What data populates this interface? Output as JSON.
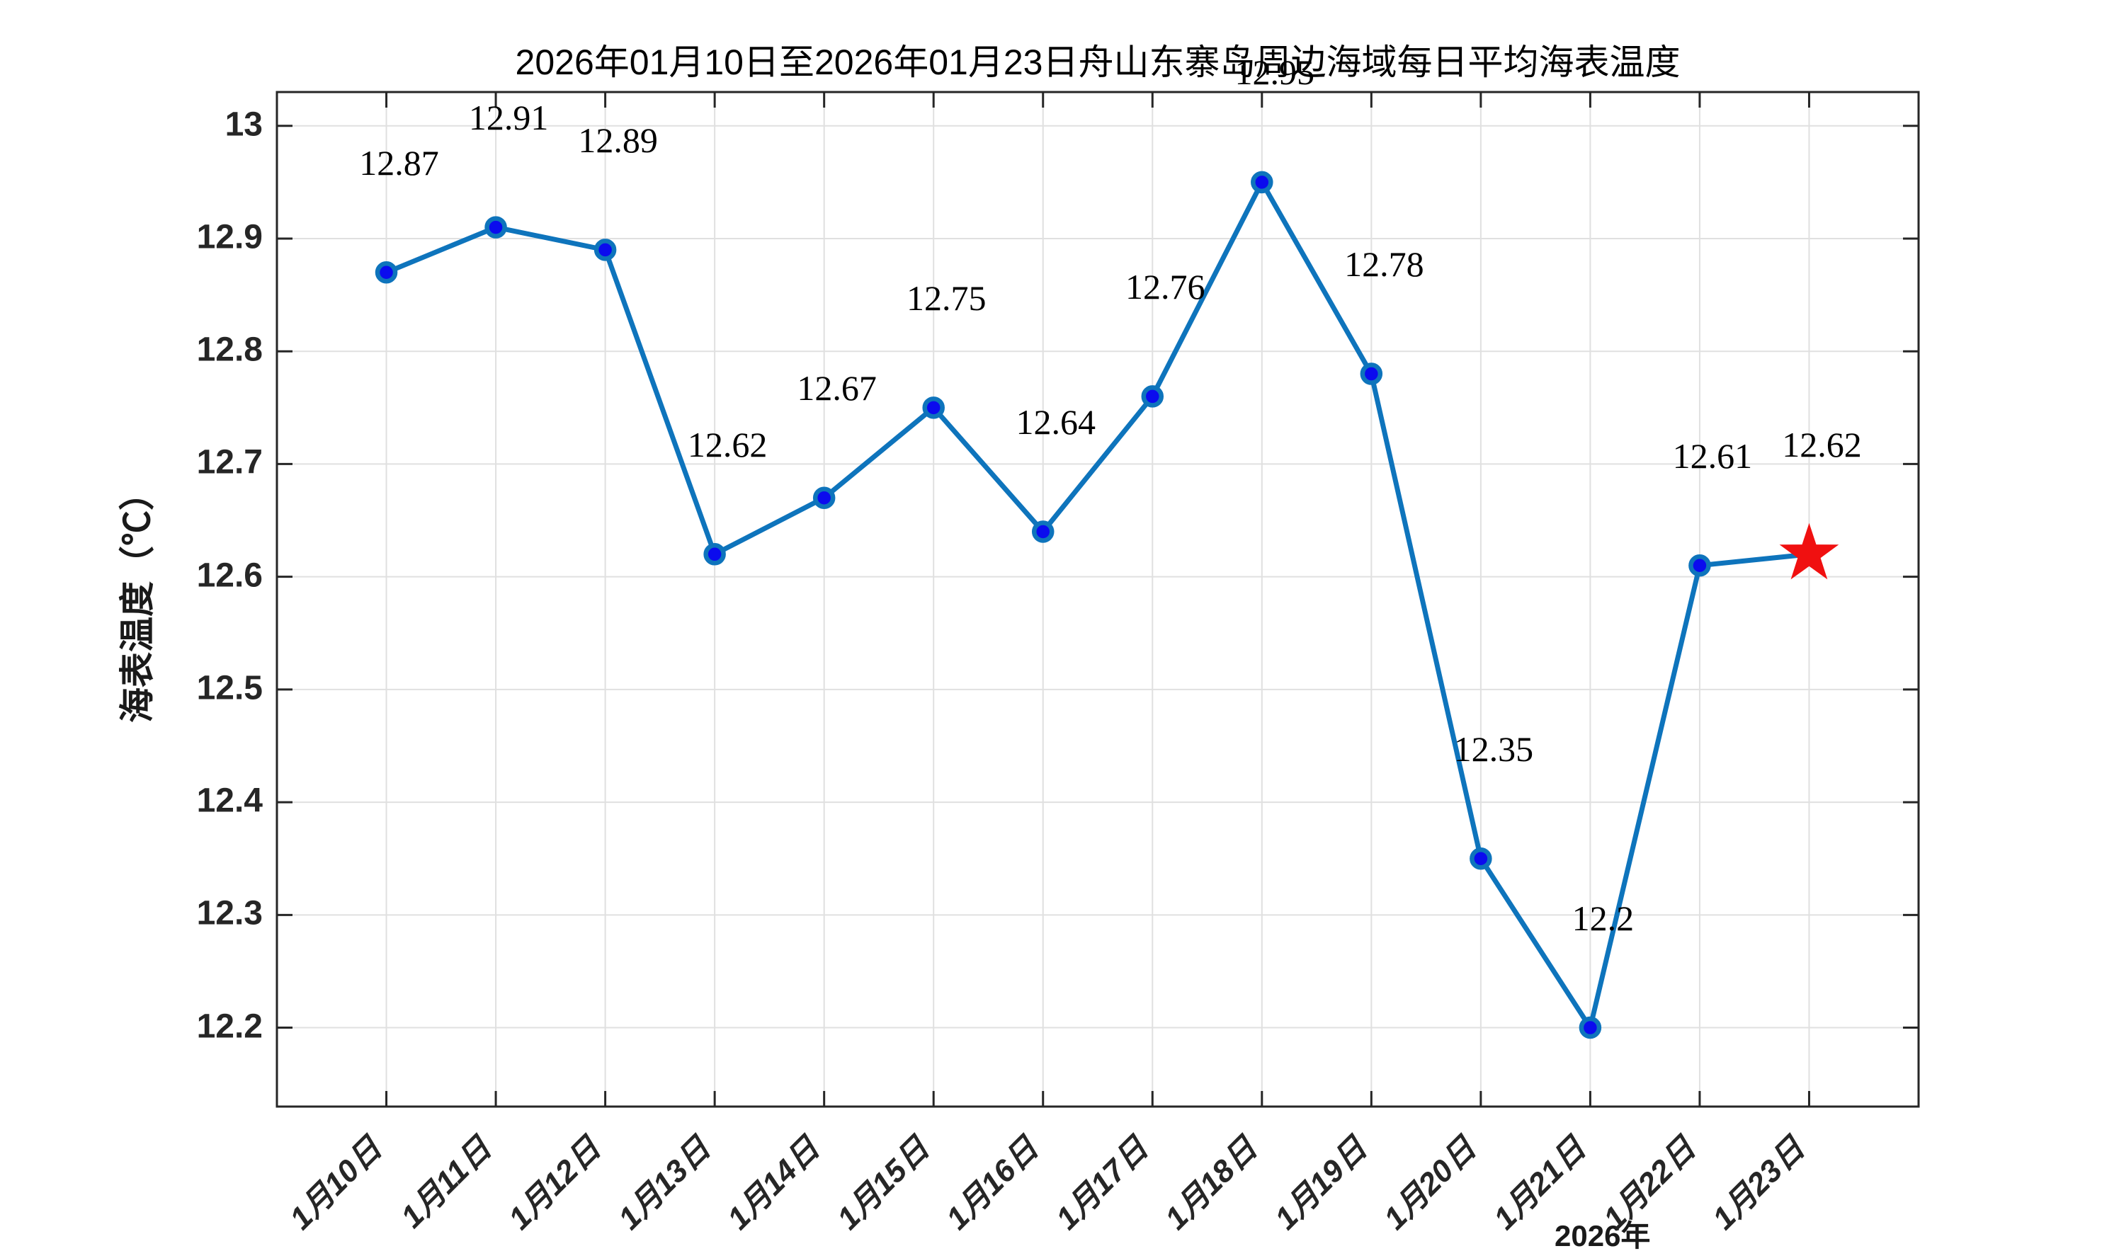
{
  "figure": {
    "title": "2026年01月10日至2026年01月23日舟山东寨岛周边海域每日平均海表温度",
    "y_axis_label": "海表温度（℃）",
    "x_axis_secondary_label": "2026年"
  },
  "chart_data": {
    "type": "line",
    "title": "2026年01月10日至2026年01月23日舟山东寨岛周边海域每日平均海表温度",
    "categories": [
      "1月10日",
      "1月11日",
      "1月12日",
      "1月13日",
      "1月14日",
      "1月15日",
      "1月16日",
      "1月17日",
      "1月18日",
      "1月19日",
      "1月20日",
      "1月21日",
      "1月22日",
      "1月23日"
    ],
    "values": [
      12.87,
      12.91,
      12.89,
      12.62,
      12.67,
      12.75,
      12.64,
      12.76,
      12.95,
      12.78,
      12.35,
      12.2,
      12.61,
      12.62
    ],
    "point_labels": [
      "12.87",
      "12.91",
      "12.89",
      "12.62",
      "12.67",
      "12.75",
      "12.64",
      "12.76",
      "12.95",
      "12.78",
      "12.35",
      "12.2",
      "12.61",
      "12.62"
    ],
    "xlabel": "",
    "ylabel": "海表温度（℃）",
    "x_secondary_label": "2026年",
    "ylim": [
      12.13,
      13.03
    ],
    "y_ticks": [
      13,
      12.9,
      12.8,
      12.7,
      12.6,
      12.5,
      12.4,
      12.3,
      12.2
    ],
    "grid": true,
    "legend": "none",
    "last_point_marker": "red-star",
    "colors": {
      "line": "#0e74bc",
      "marker_face": "#0b0bee",
      "marker_edge": "#0e74bc",
      "star": "#f01010",
      "grid": "#e0e0e0",
      "axis": "#262626",
      "tick_text": "#262626",
      "label_text": "#000000"
    }
  }
}
